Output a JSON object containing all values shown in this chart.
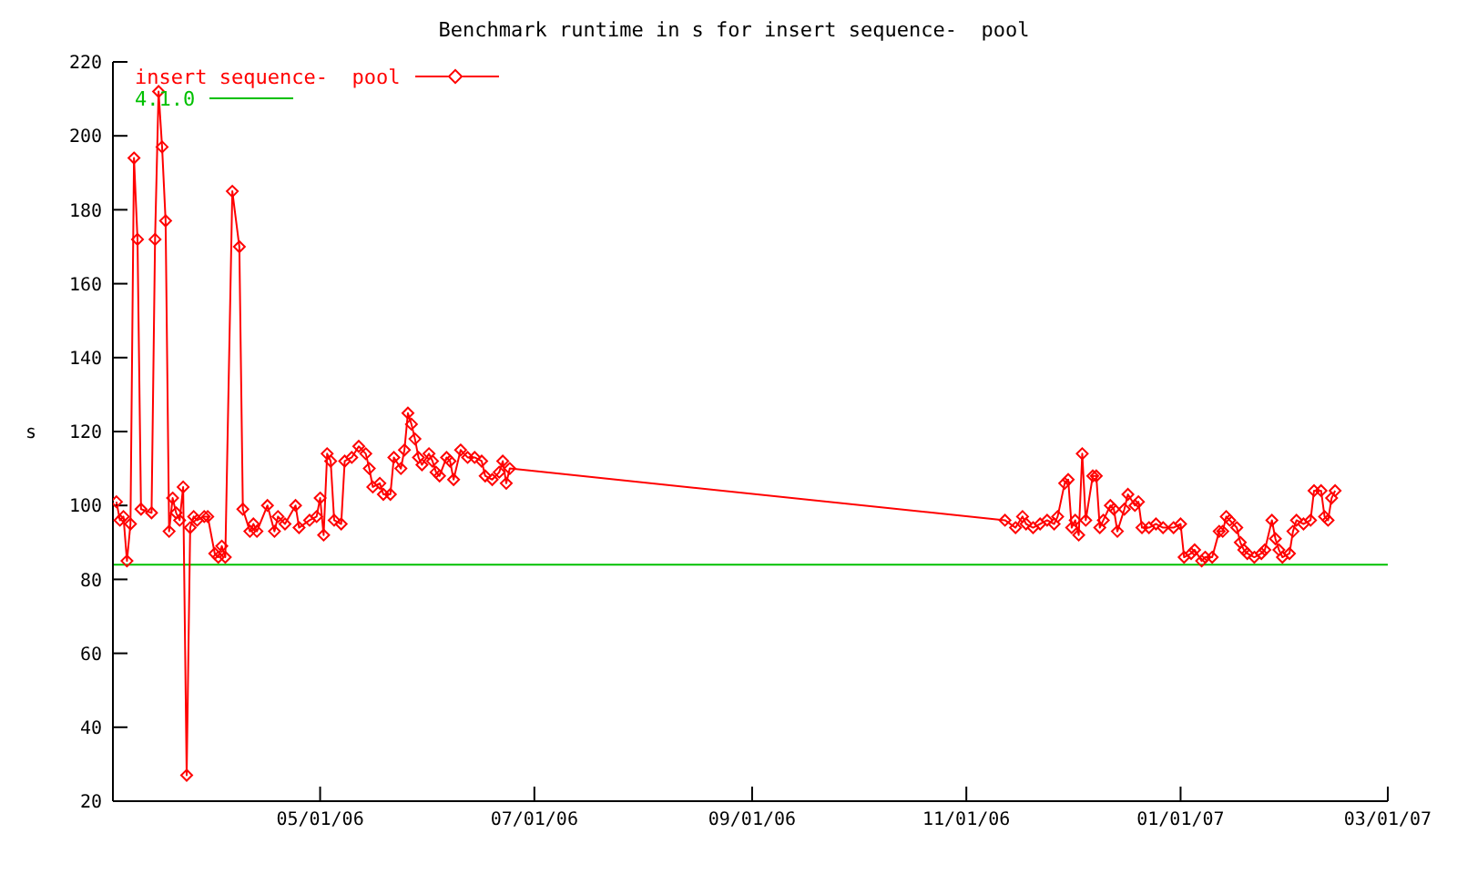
{
  "chart_data": {
    "type": "line",
    "title": "Benchmark runtime in s for insert sequence-  pool",
    "ylabel": "s",
    "xlim": [
      "2006-03-03",
      "2007-03-01"
    ],
    "xticks": [
      {
        "value": "2006-05-01",
        "label": "05/01/06"
      },
      {
        "value": "2006-07-01",
        "label": "07/01/06"
      },
      {
        "value": "2006-09-01",
        "label": "09/01/06"
      },
      {
        "value": "2006-11-01",
        "label": "11/01/06"
      },
      {
        "value": "2007-01-01",
        "label": "01/01/07"
      },
      {
        "value": "2007-03-01",
        "label": "03/01/07"
      }
    ],
    "ylim": [
      20,
      220
    ],
    "yticks": [
      20,
      40,
      60,
      80,
      100,
      120,
      140,
      160,
      180,
      200,
      220
    ],
    "legend": "top left",
    "marker": "diamond",
    "line_style": "solid",
    "ref_lines": [
      {
        "axis": "y",
        "value": 84,
        "label": "4.1.0",
        "color": "#00c000"
      }
    ],
    "series": [
      {
        "name": "insert sequence-  pool",
        "color": "#ff0000",
        "x": [
          "2006-03-04",
          "2006-03-05",
          "2006-03-06",
          "2006-03-07",
          "2006-03-08",
          "2006-03-09",
          "2006-03-10",
          "2006-03-11",
          "2006-03-14",
          "2006-03-15",
          "2006-03-16",
          "2006-03-17",
          "2006-03-18",
          "2006-03-19",
          "2006-03-20",
          "2006-03-21",
          "2006-03-22",
          "2006-03-23",
          "2006-03-24",
          "2006-03-25",
          "2006-03-26",
          "2006-03-27",
          "2006-03-29",
          "2006-03-30",
          "2006-04-01",
          "2006-04-02",
          "2006-04-03",
          "2006-04-04",
          "2006-04-06",
          "2006-04-08",
          "2006-04-09",
          "2006-04-11",
          "2006-04-12",
          "2006-04-13",
          "2006-04-16",
          "2006-04-18",
          "2006-04-19",
          "2006-04-21",
          "2006-04-24",
          "2006-04-25",
          "2006-04-28",
          "2006-04-30",
          "2006-05-01",
          "2006-05-02",
          "2006-05-03",
          "2006-05-04",
          "2006-05-05",
          "2006-05-07",
          "2006-05-08",
          "2006-05-10",
          "2006-05-12",
          "2006-05-14",
          "2006-05-15",
          "2006-05-16",
          "2006-05-18",
          "2006-05-19",
          "2006-05-21",
          "2006-05-22",
          "2006-05-24",
          "2006-05-25",
          "2006-05-26",
          "2006-05-27",
          "2006-05-28",
          "2006-05-29",
          "2006-05-30",
          "2006-06-01",
          "2006-06-02",
          "2006-06-03",
          "2006-06-04",
          "2006-06-06",
          "2006-06-07",
          "2006-06-08",
          "2006-06-10",
          "2006-06-12",
          "2006-06-14",
          "2006-06-16",
          "2006-06-17",
          "2006-06-19",
          "2006-06-21",
          "2006-06-22",
          "2006-06-23",
          "2006-06-24",
          "2006-11-12",
          "2006-11-15",
          "2006-11-17",
          "2006-11-18",
          "2006-11-20",
          "2006-11-22",
          "2006-11-24",
          "2006-11-26",
          "2006-11-27",
          "2006-11-29",
          "2006-11-30",
          "2006-12-01",
          "2006-12-02",
          "2006-12-03",
          "2006-12-04",
          "2006-12-05",
          "2006-12-07",
          "2006-12-08",
          "2006-12-09",
          "2006-12-10",
          "2006-12-12",
          "2006-12-13",
          "2006-12-14",
          "2006-12-16",
          "2006-12-17",
          "2006-12-19",
          "2006-12-20",
          "2006-12-21",
          "2006-12-23",
          "2006-12-25",
          "2006-12-27",
          "2006-12-30",
          "2007-01-01",
          "2007-01-02",
          "2007-01-04",
          "2007-01-05",
          "2007-01-07",
          "2007-01-08",
          "2007-01-10",
          "2007-01-12",
          "2007-01-13",
          "2007-01-14",
          "2007-01-15",
          "2007-01-17",
          "2007-01-18",
          "2007-01-19",
          "2007-01-20",
          "2007-01-22",
          "2007-01-24",
          "2007-01-25",
          "2007-01-27",
          "2007-01-28",
          "2007-01-29",
          "2007-01-30",
          "2007-02-01",
          "2007-02-02",
          "2007-02-03",
          "2007-02-05",
          "2007-02-07",
          "2007-02-08",
          "2007-02-10",
          "2007-02-11",
          "2007-02-12",
          "2007-02-13",
          "2007-02-14"
        ],
        "values": [
          101,
          96,
          97,
          85,
          95,
          194,
          172,
          99,
          98,
          172,
          212,
          197,
          177,
          93,
          102,
          98,
          96,
          105,
          27,
          94,
          97,
          96,
          97,
          97,
          87,
          86,
          89,
          86,
          185,
          170,
          99,
          93,
          95,
          93,
          100,
          93,
          97,
          95,
          100,
          94,
          96,
          97,
          102,
          92,
          114,
          112,
          96,
          95,
          112,
          113,
          116,
          114,
          110,
          105,
          106,
          103,
          103,
          113,
          110,
          115,
          125,
          122,
          118,
          113,
          111,
          114,
          112,
          109,
          108,
          113,
          112,
          107,
          115,
          113,
          113,
          112,
          108,
          107,
          109,
          112,
          106,
          110,
          96,
          94,
          97,
          95,
          94,
          95,
          96,
          95,
          97,
          106,
          107,
          94,
          96,
          92,
          114,
          96,
          108,
          108,
          94,
          96,
          100,
          99,
          93,
          99,
          103,
          100,
          101,
          94,
          94,
          95,
          94,
          94,
          95,
          86,
          87,
          88,
          85,
          86,
          86,
          93,
          93,
          97,
          96,
          94,
          90,
          88,
          87,
          86,
          87,
          88,
          96,
          91,
          88,
          86,
          87,
          93,
          96,
          95,
          96,
          104,
          104,
          97,
          96,
          102,
          104
        ]
      }
    ]
  }
}
